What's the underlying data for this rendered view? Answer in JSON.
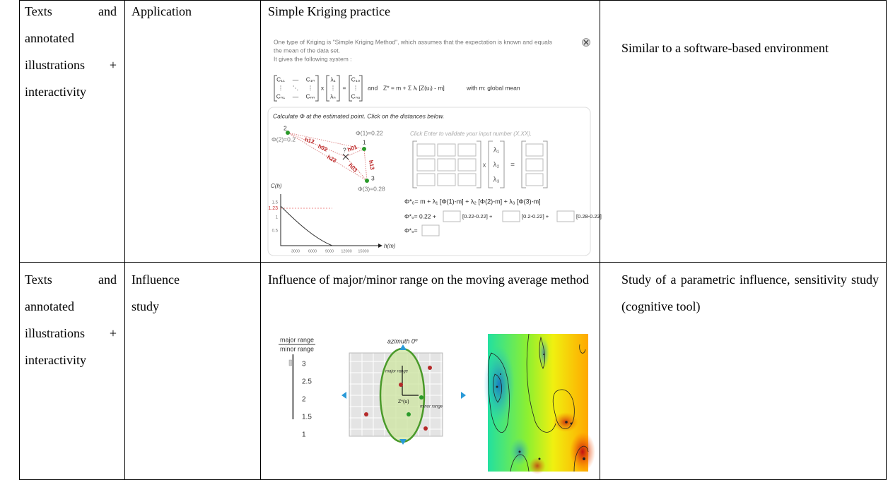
{
  "table": {
    "rows": [
      [
        "Texts and annotated illustrations + interactivity",
        "Application",
        "Simple Kriging practice",
        "Similar to a software-based environment"
      ],
      [
        "Texts and annotated illustrations + interactivity",
        "Influence study",
        "Influence of major/minor range on the moving average method",
        "Study of a parametric influence, sensitivity study (cognitive tool)"
      ]
    ]
  },
  "kriging": {
    "intro": [
      "One type of Kriging is \"Simple Kriging Method\", which assumes that the expectation is known and equals",
      "the mean of the data set.",
      "It gives the following system :"
    ],
    "system": {
      "matrix": [
        "C₁₁",
        "—",
        "C₁ₙ",
        "⋮",
        "⋱",
        "⋮",
        "Cₙ₁",
        "—",
        "Cₙₙ"
      ],
      "times": "x",
      "lambdas": [
        "λ₁",
        "⋮",
        "λₙ"
      ],
      "equals": "=",
      "rhs": [
        "C₁₀",
        "⋮",
        "Cₙ₀"
      ],
      "and": "and",
      "estimator": "Z* = m + Σ λᵢ [Z(uᵢ) - m]",
      "mean": "with m: global mean"
    },
    "exercise": {
      "prompt": "Calculate Φ at the estimated point. Click on the distances below.",
      "points": [
        {
          "label": "2",
          "phi": "Φ(2)=0.2"
        },
        {
          "label": "1",
          "phi": "Φ(1)=0.22"
        },
        {
          "label": "3",
          "phi": "Φ(3)=0.28"
        }
      ],
      "estimate": "?",
      "distances": [
        "h12",
        "h02",
        "h01",
        "h23",
        "h03",
        "h13"
      ],
      "hint": "Click Enter to validate your input number (X.XX).",
      "times": "x",
      "lambdas": [
        "λ₁",
        "λ₂",
        "λ₃"
      ],
      "equals": "=",
      "formula": "Φ*₀= m + λ₁ [Φ(1)-m] + λ₂ [Φ(2)-m] + λ₃ [Φ(3)-m]",
      "computation": [
        "Φ*₀= 0.22 +",
        "[0.22-0.22] +",
        "[0.2-0.22] +",
        "[0.28-0.22]"
      ],
      "result": "Φ*₀=",
      "chart": {
        "ylabel": "C(h)",
        "xlabel": "h(m)",
        "yticks": [
          "1.5",
          "1.23",
          "1",
          "0.5"
        ],
        "xticks": [
          "3000",
          "6000",
          "9000",
          "12000",
          "15000"
        ]
      }
    }
  },
  "influence": {
    "ratio": {
      "numerator": "major range",
      "denominator": "minor range"
    },
    "slider": [
      "3",
      "2.5",
      "2",
      "1.5",
      "1"
    ],
    "azimuth": "azimuth 0º",
    "labels": {
      "major": "major range",
      "minor": "minor range",
      "estimate": "Z*(u)"
    }
  }
}
